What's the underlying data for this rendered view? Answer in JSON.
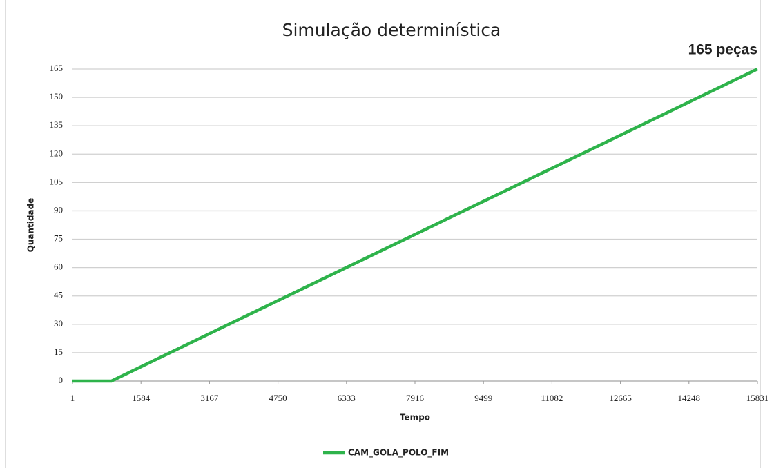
{
  "chart_data": {
    "type": "line",
    "title": "Simulação determinística",
    "annotation": "165 peças",
    "x_label": "Tempo",
    "y_label": "Quantidade",
    "x": [
      1,
      900,
      15831
    ],
    "series": [
      {
        "name": "CAM_GOLA_POLO_FIM",
        "color": "#2eb34b",
        "values": [
          0,
          0,
          165
        ]
      }
    ],
    "xlim": [
      1,
      15831
    ],
    "xticks": [
      1,
      1584,
      3167,
      4750,
      6333,
      7916,
      9499,
      11082,
      12665,
      14248,
      15831
    ],
    "ylim": [
      0,
      165
    ],
    "yticks": [
      0,
      15,
      30,
      45,
      60,
      75,
      90,
      105,
      120,
      135,
      150,
      165
    ],
    "grid": true,
    "legend": "bottom"
  }
}
